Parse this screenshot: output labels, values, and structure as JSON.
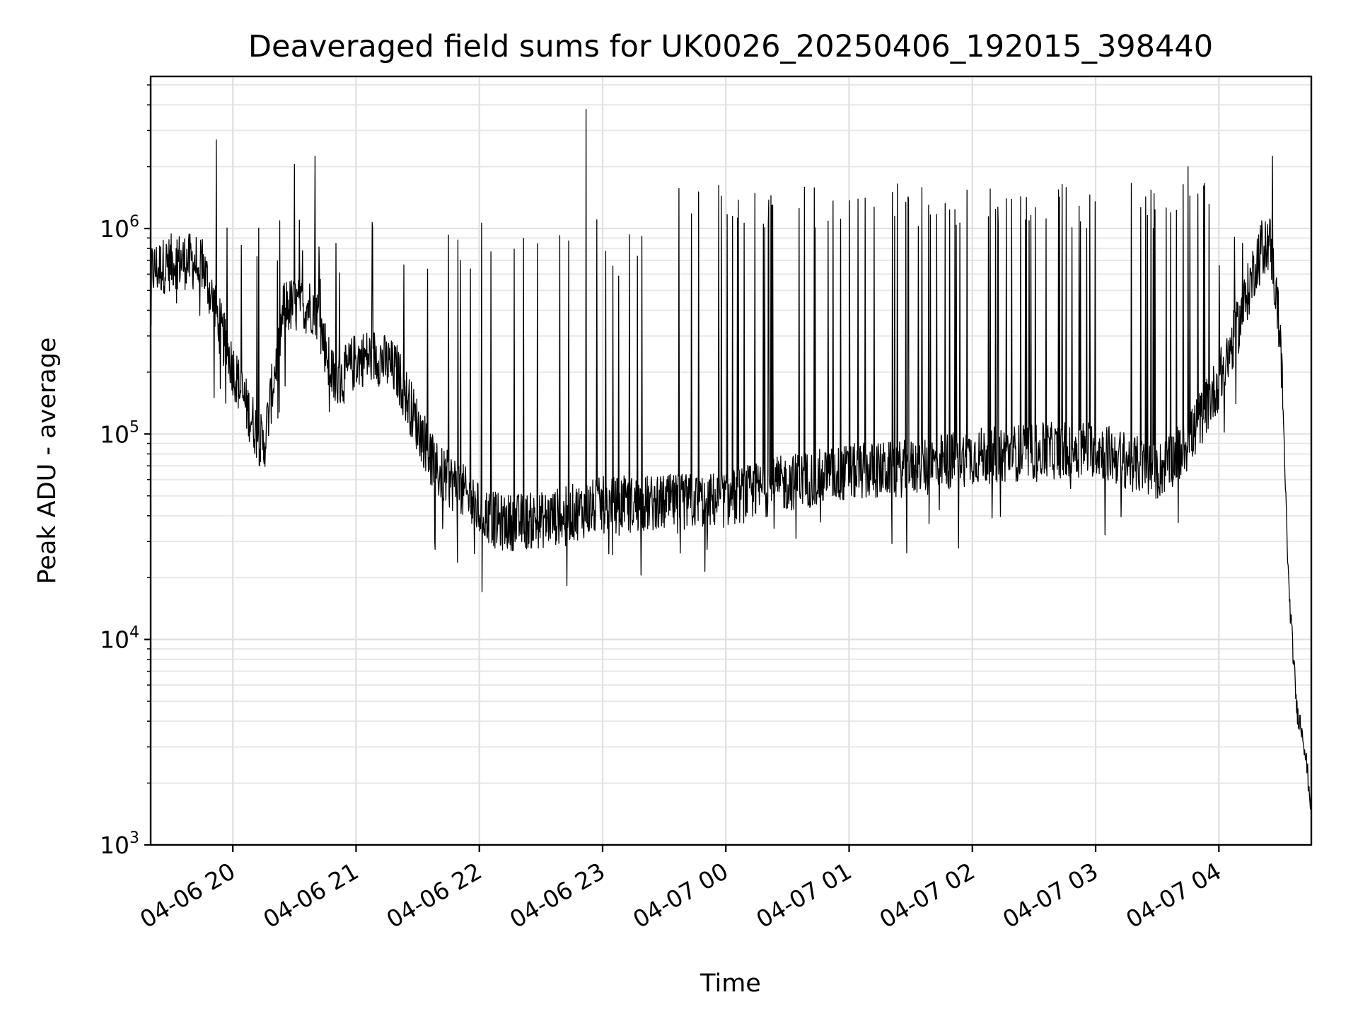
{
  "chart_data": {
    "type": "line",
    "title": "Deaveraged field sums for UK0026_20250406_192015_398440",
    "xlabel": "Time",
    "ylabel": "Peak ADU - average",
    "yscale": "log",
    "ylim": [
      1000,
      5500000
    ],
    "xlim": [
      "2025-04-06 19:20",
      "2025-04-07 04:45"
    ],
    "grid": "on (major and minor, light gray)",
    "legend": "none",
    "line_color": "#000000",
    "x_ticks": [
      {
        "value": "2025-04-06 20:00",
        "label": "04-06 20"
      },
      {
        "value": "2025-04-06 21:00",
        "label": "04-06 21"
      },
      {
        "value": "2025-04-06 22:00",
        "label": "04-06 22"
      },
      {
        "value": "2025-04-06 23:00",
        "label": "04-06 23"
      },
      {
        "value": "2025-04-07 00:00",
        "label": "04-07 00"
      },
      {
        "value": "2025-04-07 01:00",
        "label": "04-07 01"
      },
      {
        "value": "2025-04-07 02:00",
        "label": "04-07 02"
      },
      {
        "value": "2025-04-07 03:00",
        "label": "04-07 03"
      },
      {
        "value": "2025-04-07 04:00",
        "label": "04-07 04"
      }
    ],
    "y_ticks": [
      {
        "value": 1000,
        "base": "10",
        "exp": "3"
      },
      {
        "value": 10000,
        "base": "10",
        "exp": "4"
      },
      {
        "value": 100000,
        "base": "10",
        "exp": "5"
      },
      {
        "value": 1000000,
        "base": "10",
        "exp": "6"
      }
    ],
    "series": [
      {
        "style": "baseline envelope (approximate)",
        "points": [
          {
            "x": "2025-04-06 19:20",
            "y": 620000
          },
          {
            "x": "2025-04-06 19:32",
            "y": 700000
          },
          {
            "x": "2025-04-06 19:45",
            "y": 680000
          },
          {
            "x": "2025-04-06 19:55",
            "y": 300000
          },
          {
            "x": "2025-04-06 20:05",
            "y": 150000
          },
          {
            "x": "2025-04-06 20:15",
            "y": 85000
          },
          {
            "x": "2025-04-06 20:25",
            "y": 420000
          },
          {
            "x": "2025-04-06 20:40",
            "y": 420000
          },
          {
            "x": "2025-04-06 20:50",
            "y": 170000
          },
          {
            "x": "2025-04-06 21:00",
            "y": 230000
          },
          {
            "x": "2025-04-06 21:10",
            "y": 240000
          },
          {
            "x": "2025-04-06 21:20",
            "y": 200000
          },
          {
            "x": "2025-04-06 21:30",
            "y": 110000
          },
          {
            "x": "2025-04-06 21:40",
            "y": 65000
          },
          {
            "x": "2025-04-06 21:50",
            "y": 55000
          },
          {
            "x": "2025-04-06 22:00",
            "y": 42000
          },
          {
            "x": "2025-04-06 22:10",
            "y": 37000
          },
          {
            "x": "2025-04-06 22:30",
            "y": 38000
          },
          {
            "x": "2025-04-06 23:00",
            "y": 45000
          },
          {
            "x": "2025-04-06 23:30",
            "y": 46000
          },
          {
            "x": "2025-04-07 00:00",
            "y": 48000
          },
          {
            "x": "2025-04-07 00:30",
            "y": 58000
          },
          {
            "x": "2025-04-07 01:00",
            "y": 65000
          },
          {
            "x": "2025-04-07 01:30",
            "y": 68000
          },
          {
            "x": "2025-04-07 02:00",
            "y": 78000
          },
          {
            "x": "2025-04-07 02:30",
            "y": 82000
          },
          {
            "x": "2025-04-07 03:00",
            "y": 85000
          },
          {
            "x": "2025-04-07 03:30",
            "y": 65000
          },
          {
            "x": "2025-04-07 03:45",
            "y": 90000
          },
          {
            "x": "2025-04-07 04:00",
            "y": 180000
          },
          {
            "x": "2025-04-07 04:10",
            "y": 350000
          },
          {
            "x": "2025-04-07 04:20",
            "y": 800000
          },
          {
            "x": "2025-04-07 04:25",
            "y": 850000
          },
          {
            "x": "2025-04-07 04:30",
            "y": 300000
          },
          {
            "x": "2025-04-07 04:34",
            "y": 18000
          },
          {
            "x": "2025-04-07 04:36",
            "y": 9000
          },
          {
            "x": "2025-04-07 04:38",
            "y": 4500
          },
          {
            "x": "2025-04-07 04:41",
            "y": 3500
          },
          {
            "x": "2025-04-07 04:45",
            "y": 1500
          }
        ]
      },
      {
        "style": "notable spikes (approximate)",
        "points": [
          {
            "x": "2025-04-06 19:52",
            "y": 2700000
          },
          {
            "x": "2025-04-06 20:30",
            "y": 2050000
          },
          {
            "x": "2025-04-06 20:40",
            "y": 2250000
          },
          {
            "x": "2025-04-06 22:52",
            "y": 3800000
          },
          {
            "x": "2025-04-07 03:45",
            "y": 2000000
          },
          {
            "x": "2025-04-07 04:26",
            "y": 2250000
          }
        ]
      }
    ]
  }
}
